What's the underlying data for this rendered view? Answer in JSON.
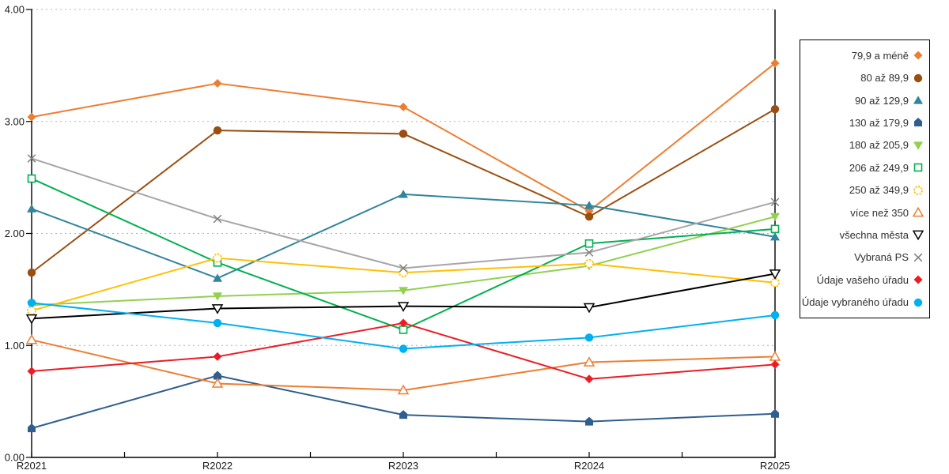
{
  "chart_data": {
    "type": "line",
    "title": "",
    "categories": [
      "R2021",
      "R2022",
      "R2023",
      "R2024",
      "R2025"
    ],
    "y_axis": {
      "min": 0,
      "max": 4,
      "tick_labels": [
        "0.00",
        "1.00",
        "2.00",
        "3.00",
        "4.00"
      ],
      "gridlines": "dotted",
      "gridline_color": "#b3b3b3"
    },
    "legend_position": "right",
    "series": [
      {
        "name": "79,9 a méně",
        "color": "#ED7D31",
        "marker": "diamond",
        "values": [
          3.04,
          3.34,
          3.13,
          2.2,
          3.52
        ]
      },
      {
        "name": "80 až 89,9",
        "color": "#9A4E0F",
        "marker": "circle",
        "values": [
          1.65,
          2.92,
          2.89,
          2.15,
          3.11
        ]
      },
      {
        "name": "90 až 129,9",
        "color": "#31859C",
        "marker": "triangle-up",
        "values": [
          2.22,
          1.6,
          2.35,
          2.25,
          1.97
        ]
      },
      {
        "name": "130 až 179,9",
        "color": "#305E8E",
        "marker": "pentagon",
        "values": [
          0.26,
          0.73,
          0.38,
          0.32,
          0.39
        ]
      },
      {
        "name": "180 až 205,9",
        "color": "#92D050",
        "marker": "triangle-down",
        "values": [
          1.36,
          1.44,
          1.49,
          1.71,
          2.15
        ]
      },
      {
        "name": "206 až 249,9",
        "color": "#00B050",
        "marker": "square-open",
        "values": [
          2.49,
          1.74,
          1.14,
          1.91,
          2.04
        ]
      },
      {
        "name": "250 až 349,9",
        "color": "#FFC000",
        "marker": "circle-open-dashed",
        "values": [
          1.31,
          1.78,
          1.65,
          1.73,
          1.56
        ]
      },
      {
        "name": "více než 350",
        "color": "#ED7D31",
        "marker": "triangle-up-open",
        "values": [
          1.05,
          0.66,
          0.6,
          0.85,
          0.9
        ]
      },
      {
        "name": "všechna města",
        "color": "#000000",
        "marker": "triangle-down-open",
        "values": [
          1.24,
          1.33,
          1.35,
          1.34,
          1.64
        ]
      },
      {
        "name": "Vybraná PS",
        "color": "#A6A6A6",
        "marker": "x-cross",
        "marker_color": "#7F7F7F",
        "values": [
          2.67,
          2.13,
          1.69,
          1.83,
          2.28
        ]
      },
      {
        "name": "Údaje vašeho úřadu",
        "color": "#EC1C24",
        "marker": "diamond",
        "values": [
          0.77,
          0.9,
          1.2,
          0.7,
          0.83
        ]
      },
      {
        "name": "Údaje vybraného úřadu",
        "color": "#00B0F0",
        "marker": "circle",
        "values": [
          1.38,
          1.2,
          0.97,
          1.07,
          1.27
        ]
      }
    ]
  }
}
